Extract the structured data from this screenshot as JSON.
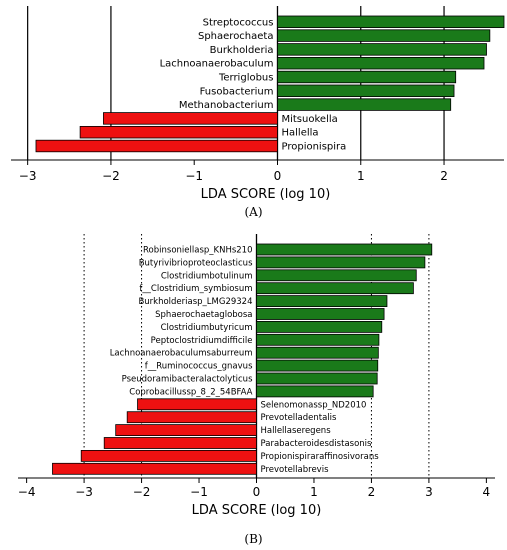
{
  "panels": [
    {
      "label": "(A)"
    },
    {
      "label": "(B)"
    }
  ],
  "chart_data": [
    {
      "type": "bar",
      "orientation": "horizontal",
      "categories": [
        "Streptococcus",
        "Sphaerochaeta",
        "Burkholderia",
        "Lachnoanaerobaculum",
        "Terriglobus",
        "Fusobacterium",
        "Methanobacterium",
        "Mitsuokella",
        "Hallella",
        "Propionispira"
      ],
      "values": [
        2.72,
        2.55,
        2.51,
        2.48,
        2.14,
        2.12,
        2.08,
        -2.09,
        -2.37,
        -2.9
      ],
      "xlabel": "LDA SCORE (log 10)",
      "xlim": [
        -3.2,
        2.72
      ],
      "xticks": [
        -3,
        -2,
        -1,
        0,
        1,
        2
      ],
      "grid_lines": [
        -3,
        -2,
        0,
        1,
        2
      ],
      "colors": {
        "positive": "#1a7a1a",
        "negative": "#ee1111"
      }
    },
    {
      "type": "bar",
      "orientation": "horizontal",
      "categories": [
        "Robinsoniellasp_KNHs210",
        "Butyrivibrioproteoclasticus",
        "Clostridiumbotulinum",
        "f__Clostridium_symbiosum",
        "Burkholderiasp_LMG29324",
        "Sphaerochaetaglobosa",
        "Clostridiumbutyricum",
        "Peptoclostridiumdifficile",
        "Lachnoanaerobaculumsaburreum",
        "f__Ruminococcus_gnavus",
        "Pseudoramibacteralactolyticus",
        "Coprobacillussp_8_2_54BFAA",
        "Selenomonassp_ND2010",
        "Prevotelladentalis",
        "Hallellaseregens",
        "Parabacteroidesdistasonis",
        "Propionispiraraffinosivorans",
        "Prevotellabrevis"
      ],
      "values": [
        3.05,
        2.93,
        2.78,
        2.73,
        2.27,
        2.22,
        2.18,
        2.13,
        2.12,
        2.11,
        2.1,
        2.03,
        -2.07,
        -2.25,
        -2.45,
        -2.65,
        -3.05,
        -3.55
      ],
      "xlabel": "LDA SCORE (log 10)",
      "xlim": [
        -4.15,
        4.15
      ],
      "xticks": [
        -4,
        -3,
        -2,
        -1,
        0,
        1,
        2,
        3,
        4
      ],
      "grid_lines": [
        -3,
        -2,
        0,
        2,
        3
      ],
      "colors": {
        "positive": "#1a7a1a",
        "negative": "#ee1111"
      }
    }
  ]
}
